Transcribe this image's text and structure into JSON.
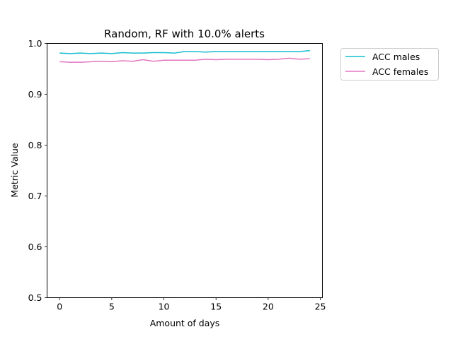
{
  "chart_data": {
    "type": "line",
    "title": "Random, RF with 10.0% alerts",
    "xlabel": "Amount of days",
    "ylabel": "Metric Value",
    "xlim": [
      -1.2,
      25.2
    ],
    "ylim": [
      0.5,
      1.0
    ],
    "xticks": [
      0,
      5,
      10,
      15,
      20,
      25
    ],
    "yticks": [
      0.5,
      0.6,
      0.7,
      0.8,
      0.9,
      1.0
    ],
    "xtick_labels": [
      "0",
      "5",
      "10",
      "15",
      "20",
      "25"
    ],
    "ytick_labels": [
      "0.5",
      "0.6",
      "0.7",
      "0.8",
      "0.9",
      "1.0"
    ],
    "grid": false,
    "legend_position": "outside-right-top",
    "x": [
      0,
      1,
      2,
      3,
      4,
      5,
      6,
      7,
      8,
      9,
      10,
      11,
      12,
      13,
      14,
      15,
      16,
      17,
      18,
      19,
      20,
      21,
      22,
      23,
      24
    ],
    "series": [
      {
        "name": "ACC males",
        "color": "#17becf",
        "values": [
          0.981,
          0.98,
          0.981,
          0.98,
          0.981,
          0.98,
          0.982,
          0.981,
          0.981,
          0.982,
          0.982,
          0.981,
          0.984,
          0.984,
          0.983,
          0.984,
          0.984,
          0.984,
          0.984,
          0.984,
          0.984,
          0.984,
          0.984,
          0.984,
          0.986
        ]
      },
      {
        "name": "ACC females",
        "color": "#e377c2",
        "values": [
          0.964,
          0.963,
          0.963,
          0.964,
          0.965,
          0.964,
          0.966,
          0.965,
          0.968,
          0.965,
          0.967,
          0.967,
          0.967,
          0.967,
          0.969,
          0.968,
          0.969,
          0.969,
          0.969,
          0.969,
          0.968,
          0.969,
          0.971,
          0.969,
          0.97
        ]
      }
    ]
  }
}
